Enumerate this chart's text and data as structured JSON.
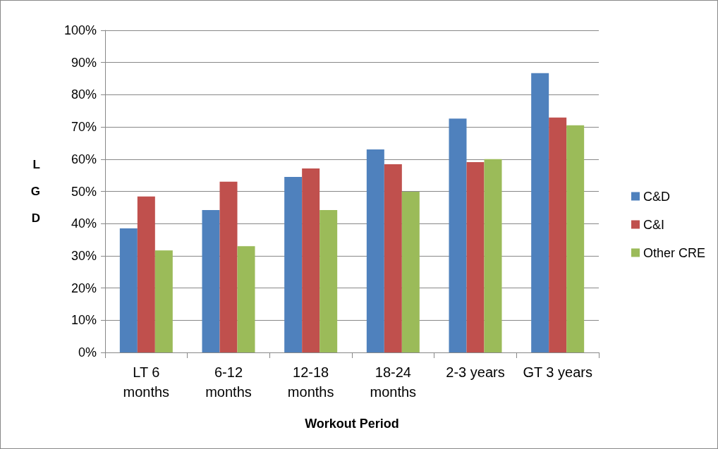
{
  "chart_data": {
    "type": "bar",
    "xlabel": "Workout Period",
    "ylabel": "L\nG\nD",
    "categories": [
      "LT 6\nmonths",
      "6-12\nmonths",
      "12-18\nmonths",
      "18-24\nmonths",
      "2-3 years",
      "GT 3 years"
    ],
    "series": [
      {
        "name": "C&D",
        "color": "#4f81bd",
        "values": [
          38.5,
          44.2,
          54.5,
          63.0,
          72.6,
          86.7
        ]
      },
      {
        "name": "C&I",
        "color": "#c0504d",
        "values": [
          48.4,
          53.0,
          57.1,
          58.4,
          59.1,
          72.9
        ]
      },
      {
        "name": "Other CRE",
        "color": "#9bbb59",
        "values": [
          31.7,
          33.0,
          44.2,
          49.9,
          60.0,
          70.5
        ]
      }
    ],
    "ylim": [
      0,
      100
    ],
    "yticks": [
      {
        "value": 0,
        "label": "0%"
      },
      {
        "value": 10,
        "label": "10%"
      },
      {
        "value": 20,
        "label": "20%"
      },
      {
        "value": 30,
        "label": "30%"
      },
      {
        "value": 40,
        "label": "40%"
      },
      {
        "value": 50,
        "label": "50%"
      },
      {
        "value": 60,
        "label": "60%"
      },
      {
        "value": 70,
        "label": "70%"
      },
      {
        "value": 80,
        "label": "80%"
      },
      {
        "value": 90,
        "label": "90%"
      },
      {
        "value": 100,
        "label": "100%"
      }
    ],
    "grid": "y",
    "legend": "right"
  }
}
